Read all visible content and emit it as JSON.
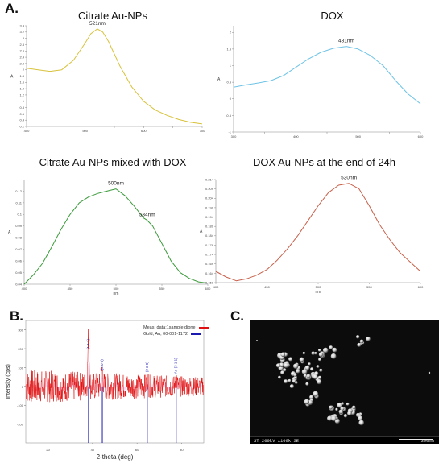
{
  "panels": {
    "A": "A.",
    "B": "B.",
    "C": "C."
  },
  "sem": {
    "caption": "ST 200kV x100k SE",
    "scale": "300nm"
  },
  "xrd_legend": {
    "meas": "Meas. data:1sample dione",
    "ref": "Gold, Au, 00-001-1172",
    "meas_color": "#e01010",
    "ref_color": "#1a1ab0"
  },
  "chart_data": [
    {
      "type": "line",
      "title": "Citrate Au-NPs",
      "ylabel": "A",
      "xlabel": "",
      "xlim": [
        400,
        700
      ],
      "ylim": [
        0.2,
        3.4
      ],
      "x_ticks": [
        400,
        450,
        500,
        550,
        600,
        650,
        700
      ],
      "x_tick_labels": [
        "400",
        "",
        "500",
        "",
        "600",
        "",
        "700"
      ],
      "y_ticks": [
        0.2,
        0.4,
        0.6,
        0.8,
        1.0,
        1.2,
        1.4,
        1.6,
        1.8,
        2.0,
        2.2,
        2.4,
        2.6,
        2.8,
        3.0,
        3.2,
        3.4
      ],
      "color": "#d8c23a",
      "series": [
        {
          "x": [
            400,
            420,
            440,
            460,
            480,
            500,
            510,
            521,
            530,
            540,
            560,
            580,
            600,
            620,
            640,
            660,
            680,
            700
          ],
          "y": [
            2.05,
            2.0,
            1.95,
            2.0,
            2.3,
            2.85,
            3.15,
            3.3,
            3.2,
            2.9,
            2.1,
            1.45,
            1.0,
            0.72,
            0.55,
            0.42,
            0.33,
            0.28
          ]
        }
      ],
      "annotations": [
        {
          "x": 521,
          "y": 3.3,
          "text": "521nm"
        }
      ]
    },
    {
      "type": "line",
      "title": "DOX",
      "ylabel": "A",
      "xlabel": "",
      "xlim": [
        300,
        600
      ],
      "ylim": [
        -1.0,
        2.2
      ],
      "x_ticks": [
        300,
        350,
        400,
        450,
        500,
        550,
        600
      ],
      "x_tick_labels": [
        "300",
        "",
        "400",
        "",
        "500",
        "",
        "600"
      ],
      "y_ticks": [
        -1.0,
        -0.5,
        0,
        0.5,
        1.0,
        1.5,
        2.0
      ],
      "color": "#6ec3e6",
      "series": [
        {
          "x": [
            300,
            320,
            340,
            360,
            380,
            400,
            420,
            440,
            460,
            481,
            500,
            520,
            540,
            560,
            580,
            600
          ],
          "y": [
            0.35,
            0.42,
            0.48,
            0.55,
            0.7,
            0.95,
            1.2,
            1.4,
            1.52,
            1.58,
            1.5,
            1.3,
            1.0,
            0.55,
            0.15,
            -0.15
          ]
        }
      ],
      "annotations": [
        {
          "x": 481,
          "y": 1.58,
          "text": "481nm"
        }
      ]
    },
    {
      "type": "line",
      "title": "Citrate Au-NPs mixed with DOX",
      "ylabel": "A",
      "xlabel": "nm",
      "xlim": [
        400,
        600
      ],
      "ylim": [
        0.04,
        0.13
      ],
      "x_ticks": [
        400,
        450,
        500,
        550,
        600
      ],
      "x_tick_labels": [
        "400",
        "450",
        "500",
        "550",
        "600"
      ],
      "y_ticks": [
        0.04,
        0.05,
        0.06,
        0.07,
        0.08,
        0.09,
        0.1,
        0.11,
        0.12
      ],
      "color": "#3a9a3a",
      "series": [
        {
          "x": [
            400,
            410,
            420,
            430,
            440,
            450,
            460,
            470,
            480,
            490,
            500,
            510,
            520,
            530,
            534,
            540,
            550,
            560,
            570,
            580,
            590,
            600
          ],
          "y": [
            0.04,
            0.048,
            0.058,
            0.072,
            0.087,
            0.1,
            0.11,
            0.115,
            0.118,
            0.12,
            0.122,
            0.116,
            0.107,
            0.097,
            0.095,
            0.09,
            0.075,
            0.06,
            0.05,
            0.045,
            0.042,
            0.041
          ]
        }
      ],
      "annotations": [
        {
          "x": 500,
          "y": 0.122,
          "text": "500nm"
        },
        {
          "x": 534,
          "y": 0.095,
          "text": "534nm"
        }
      ]
    },
    {
      "type": "line",
      "title": "DOX Au-NPs at the end of 24h",
      "ylabel": "A",
      "xlabel": "nm",
      "xlim": [
        400,
        600
      ],
      "ylim": [
        0.159,
        0.214
      ],
      "x_ticks": [
        400,
        450,
        500,
        550,
        600
      ],
      "x_tick_labels": [
        "400",
        "450",
        "500",
        "550",
        "600"
      ],
      "y_ticks": [
        0.159,
        0.164,
        0.169,
        0.174,
        0.179,
        0.184,
        0.189,
        0.194,
        0.199,
        0.204,
        0.209,
        0.214
      ],
      "color": "#c8604a",
      "series": [
        {
          "x": [
            400,
            410,
            420,
            430,
            440,
            450,
            460,
            470,
            480,
            490,
            500,
            510,
            520,
            530,
            540,
            550,
            560,
            570,
            580,
            590,
            600
          ],
          "y": [
            0.165,
            0.162,
            0.16,
            0.161,
            0.163,
            0.166,
            0.171,
            0.177,
            0.184,
            0.192,
            0.2,
            0.207,
            0.211,
            0.212,
            0.209,
            0.2,
            0.19,
            0.182,
            0.175,
            0.17,
            0.165
          ]
        }
      ],
      "annotations": [
        {
          "x": 530,
          "y": 0.212,
          "text": "530nm"
        }
      ]
    },
    {
      "type": "line",
      "title": "",
      "xlabel": "2-theta (deg)",
      "ylabel": "Intensity (cps)",
      "xlim": [
        10,
        90
      ],
      "ylim": [
        -300,
        350
      ],
      "x_ticks": [
        20,
        40,
        60,
        80
      ],
      "y_ticks": [
        -200,
        -100,
        0,
        100,
        200,
        300
      ],
      "color": "#e01010",
      "noise": {
        "amplitude": 90,
        "baseline": 0
      },
      "peaks": [
        {
          "x": 38.2,
          "y": 260
        },
        {
          "x": 44.4,
          "y": 80
        },
        {
          "x": 64.6,
          "y": 60
        },
        {
          "x": 77.6,
          "y": 45
        }
      ],
      "reference_lines": [
        38.2,
        44.4,
        64.6,
        77.6
      ],
      "reference_labels": [
        "(1 1 1)",
        "(2 0 0)",
        "(2 2 0)",
        "Au (3 1 1)"
      ],
      "ref_color": "#1a1ab0",
      "fill_color": "#f6c8f2"
    }
  ]
}
